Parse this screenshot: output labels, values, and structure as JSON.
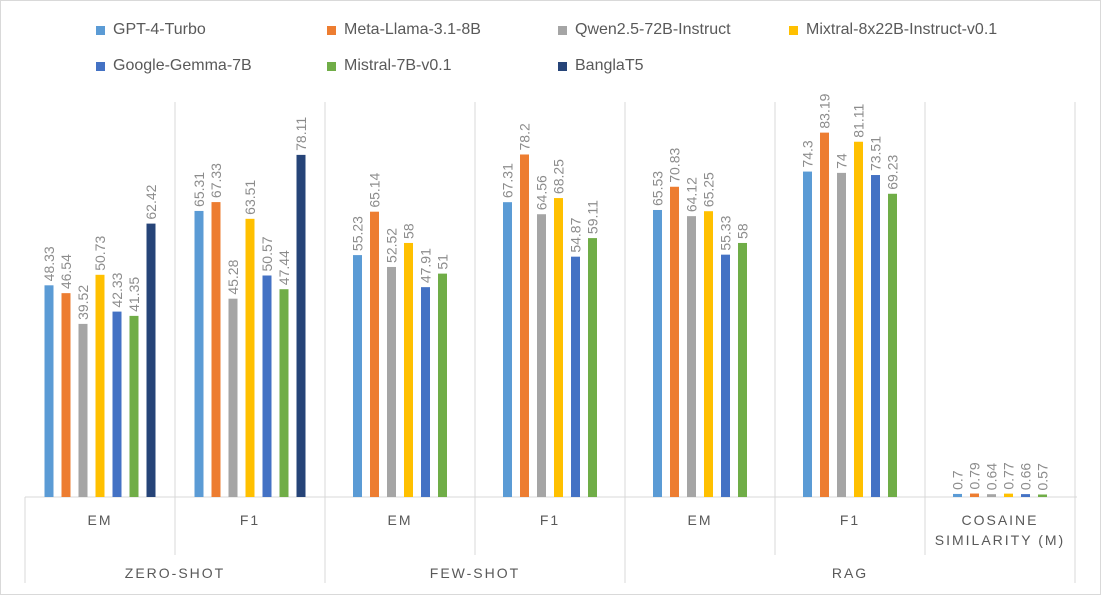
{
  "chart_data": {
    "type": "bar",
    "title": "",
    "xlabel": "",
    "ylabel": "",
    "ylim": [
      0,
      90
    ],
    "grid": false,
    "legend_position": "top",
    "series": [
      {
        "name": "GPT-4-Turbo",
        "color": "#5b9bd5"
      },
      {
        "name": "Meta-Llama-3.1-8B",
        "color": "#ed7d31"
      },
      {
        "name": "Qwen2.5-72B-Instruct",
        "color": "#a5a5a5"
      },
      {
        "name": "Mixtral-8x22B-Instruct-v0.1",
        "color": "#ffc000"
      },
      {
        "name": "Google-Gemma-7B",
        "color": "#4472c4"
      },
      {
        "name": "Mistral-7B-v0.1",
        "color": "#70ad47"
      },
      {
        "name": "BanglaT5",
        "color": "#264478"
      }
    ],
    "groups": [
      {
        "label": "ZERO-SHOT",
        "metrics": [
          {
            "label": "EM",
            "values": [
              48.33,
              46.54,
              39.52,
              50.73,
              42.33,
              41.35,
              62.42
            ],
            "labels": [
              "48.33",
              "46.54",
              "39.52",
              "50.73",
              "42.33",
              "41.35",
              "62.42"
            ]
          },
          {
            "label": "F1",
            "values": [
              65.31,
              67.33,
              45.28,
              63.51,
              50.57,
              47.44,
              78.11
            ],
            "labels": [
              "65.31",
              "67.33",
              "45.28",
              "63.51",
              "50.57",
              "47.44",
              "78.11"
            ]
          }
        ]
      },
      {
        "label": "FEW-SHOT",
        "metrics": [
          {
            "label": "EM",
            "values": [
              55.23,
              65.14,
              52.52,
              58,
              47.91,
              51
            ],
            "labels": [
              "55.23",
              "65.14",
              "52.52",
              "58",
              "47.91",
              "51"
            ]
          },
          {
            "label": "F1",
            "values": [
              67.31,
              78.2,
              64.56,
              68.25,
              54.87,
              59.11
            ],
            "labels": [
              "67.31",
              "78.2",
              "64.56",
              "68.25",
              "54.87",
              "59.11"
            ]
          }
        ]
      },
      {
        "label": "RAG",
        "metrics": [
          {
            "label": "EM",
            "values": [
              65.53,
              70.83,
              64.12,
              65.25,
              55.33,
              58
            ],
            "labels": [
              "65.53",
              "70.83",
              "64.12",
              "65.25",
              "55.33",
              "58"
            ]
          },
          {
            "label": "F1",
            "values": [
              74.3,
              83.19,
              74,
              81.11,
              73.51,
              69.23
            ],
            "labels": [
              "74.3",
              "83.19",
              "74",
              "81.11",
              "73.51",
              "69.23"
            ]
          },
          {
            "label": "COSAINE SIMILARITY (M)",
            "values": [
              0.7,
              0.79,
              0.64,
              0.77,
              0.66,
              0.57
            ],
            "labels": [
              "0.7",
              "0.79",
              "0.64",
              "0.77",
              "0.66",
              "0.57"
            ]
          }
        ]
      }
    ]
  }
}
